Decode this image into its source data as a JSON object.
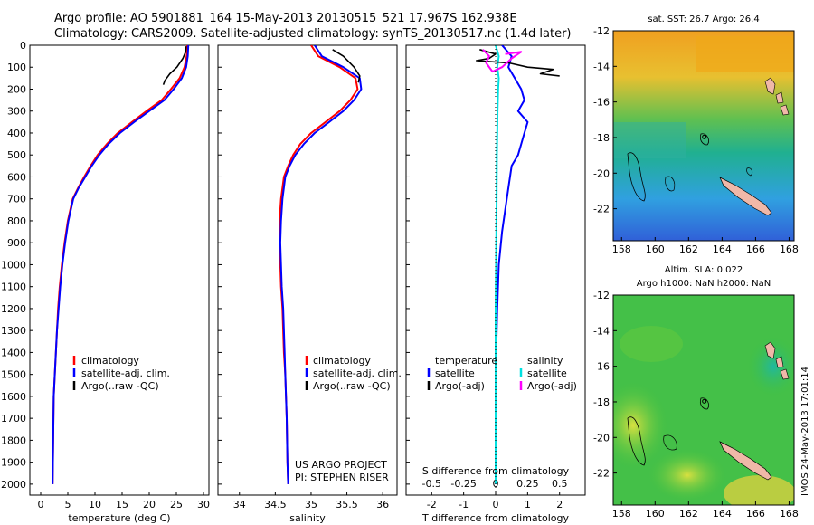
{
  "figure": {
    "title_line1": "Argo profile: AO 5901881_164 15-May-2013 20130515_521 17.967S 162.938E",
    "title_line2": "Climatology: CARS2009. Satellite-adjusted climatology: synTS_20130517.nc (1.4d later)",
    "credit_line1": "US ARGO PROJECT",
    "credit_line2": "PI: STEPHEN RISER",
    "imos_stamp": "IMOS 24-May-2013 17:01:14"
  },
  "colors": {
    "climatology": "#ff0000",
    "satellite": "#0000ff",
    "argo": "#000000",
    "satellite_salinity": "#00e0e0",
    "argo_salinity": "#ff00ff",
    "land": "#f0b8a8"
  },
  "chart_data": [
    {
      "type": "line",
      "panel": "temperature",
      "xlabel": "temperature (deg C)",
      "ylabel": "",
      "xlim": [
        -2,
        31
      ],
      "ylim": [
        2050,
        0
      ],
      "xticks": [
        "0",
        "5",
        "10",
        "15",
        "20",
        "25",
        "30"
      ],
      "yticks": [
        "0",
        "100",
        "200",
        "300",
        "400",
        "500",
        "600",
        "700",
        "800",
        "900",
        "1000",
        "1100",
        "1200",
        "1300",
        "1400",
        "1500",
        "1600",
        "1700",
        "1800",
        "1900",
        "2000"
      ],
      "legend": [
        "climatology",
        "satellite-adj. clim.",
        "Argo(..raw -QC)"
      ],
      "series": [
        {
          "name": "climatology",
          "color_key": "climatology",
          "x": [
            27.0,
            26.9,
            26.5,
            25.6,
            24.0,
            22.3,
            19.5,
            16.8,
            14.2,
            12.2,
            10.5,
            9.2,
            8.0,
            6.9,
            5.9,
            5.0,
            4.4,
            3.9,
            3.5,
            3.2,
            3.0,
            2.8,
            2.6,
            2.4,
            2.3,
            2.2
          ],
          "y": [
            0,
            50,
            100,
            150,
            200,
            250,
            300,
            350,
            400,
            450,
            500,
            550,
            600,
            650,
            700,
            800,
            900,
            1000,
            1100,
            1200,
            1300,
            1400,
            1500,
            1600,
            1800,
            2000
          ]
        },
        {
          "name": "satellite-adj. clim.",
          "color_key": "satellite",
          "x": [
            27.2,
            27.1,
            26.8,
            26.0,
            24.5,
            22.8,
            20.0,
            17.2,
            14.6,
            12.5,
            10.8,
            9.4,
            8.2,
            7.0,
            6.0,
            5.1,
            4.5,
            4.0,
            3.6,
            3.3,
            3.0,
            2.8,
            2.6,
            2.4,
            2.3,
            2.2
          ],
          "y": [
            0,
            50,
            100,
            150,
            200,
            250,
            300,
            350,
            400,
            450,
            500,
            550,
            600,
            650,
            700,
            800,
            900,
            1000,
            1100,
            1200,
            1300,
            1400,
            1500,
            1600,
            1800,
            2000
          ]
        },
        {
          "name": "Argo(..raw -QC)",
          "color_key": "argo",
          "x": [
            26.8,
            26.7,
            26.2,
            25.1,
            23.8,
            22.9,
            22.6
          ],
          "y": [
            5,
            30,
            60,
            100,
            130,
            160,
            180
          ]
        }
      ]
    },
    {
      "type": "line",
      "panel": "salinity",
      "xlabel": "salinity",
      "ylabel": "",
      "xlim": [
        33.7,
        36.2
      ],
      "ylim": [
        2050,
        0
      ],
      "xticks": [
        "34",
        "34.5",
        "35",
        "35.5",
        "36"
      ],
      "legend": [
        "climatology",
        "satellite-adj. clim.",
        "Argo(..raw -QC)"
      ],
      "series": [
        {
          "name": "climatology",
          "color_key": "climatology",
          "x": [
            35.0,
            35.1,
            35.4,
            35.62,
            35.65,
            35.55,
            35.4,
            35.2,
            35.0,
            34.85,
            34.75,
            34.68,
            34.62,
            34.58,
            34.56,
            34.56,
            34.57,
            34.58,
            34.6,
            34.62,
            34.64,
            34.65,
            34.66,
            34.67,
            34.68
          ],
          "y": [
            0,
            50,
            100,
            150,
            200,
            250,
            300,
            350,
            400,
            450,
            500,
            550,
            600,
            700,
            800,
            900,
            1000,
            1100,
            1200,
            1400,
            1500,
            1600,
            1700,
            1900,
            2000
          ]
        },
        {
          "name": "satellite-adj. clim.",
          "color_key": "satellite",
          "x": [
            35.05,
            35.15,
            35.45,
            35.68,
            35.7,
            35.6,
            35.45,
            35.25,
            35.05,
            34.9,
            34.78,
            34.7,
            34.64,
            34.6,
            34.58,
            34.57,
            34.58,
            34.59,
            34.61,
            34.63,
            34.64,
            34.65,
            34.66,
            34.67,
            34.68
          ],
          "y": [
            0,
            50,
            100,
            150,
            200,
            250,
            300,
            350,
            400,
            450,
            500,
            550,
            600,
            700,
            800,
            900,
            1000,
            1100,
            1200,
            1400,
            1500,
            1600,
            1700,
            1900,
            2000
          ]
        },
        {
          "name": "Argo(..raw -QC)",
          "color_key": "argo",
          "x": [
            35.3,
            35.45,
            35.6,
            35.68,
            35.66
          ],
          "y": [
            20,
            50,
            100,
            140,
            170
          ]
        }
      ]
    },
    {
      "type": "line",
      "panel": "difference",
      "xlabel": "T difference from climatology",
      "xlabel_top": "S difference from climatology",
      "xlim": [
        -2.8,
        2.8
      ],
      "ylim": [
        2050,
        0
      ],
      "xticks": [
        "-2",
        "-1",
        "0",
        "1",
        "2"
      ],
      "sticks": [
        "-0.5",
        "-0.25",
        "0",
        "0.25",
        "0.5"
      ],
      "legend_titles": [
        "temperature",
        "salinity"
      ],
      "legend": [
        "satellite",
        "Argo(-adj)",
        "satellite",
        "Argo(-adj)"
      ],
      "series": [
        {
          "name": "satellite",
          "group": "temperature",
          "color_key": "satellite",
          "x": [
            0.2,
            0.5,
            0.4,
            0.6,
            0.8,
            0.9,
            0.7,
            1.0,
            0.9,
            0.8,
            0.7,
            0.5,
            0.4,
            0.3,
            0.2,
            0.1,
            0.05,
            0.0,
            0.0,
            0.0
          ],
          "y": [
            0,
            50,
            100,
            150,
            200,
            250,
            300,
            350,
            400,
            450,
            500,
            550,
            650,
            750,
            850,
            1000,
            1200,
            1500,
            1800,
            2000
          ]
        },
        {
          "name": "satellite",
          "group": "salinity",
          "color_key": "satellite_salinity",
          "x": [
            0.0,
            0.1,
            0.05,
            0.1,
            0.08,
            0.06,
            0.05,
            0.04,
            0.03,
            0.02,
            0.0,
            0.0,
            0.0
          ],
          "y": [
            0,
            50,
            100,
            150,
            200,
            300,
            400,
            500,
            700,
            900,
            1200,
            1600,
            2000
          ]
        },
        {
          "name": "Argo(-adj)",
          "group": "temperature",
          "color_key": "argo",
          "x": [
            -0.5,
            0.0,
            -0.2,
            -0.6,
            0.4,
            1.0,
            1.8,
            1.4,
            2.0
          ],
          "y": [
            20,
            40,
            60,
            70,
            80,
            100,
            110,
            130,
            140
          ]
        },
        {
          "name": "Argo(-adj)",
          "group": "salinity",
          "color_key": "argo_salinity",
          "x": [
            -0.4,
            -0.2,
            -0.3,
            -0.1,
            0.2,
            0.5,
            0.8,
            0.3
          ],
          "y": [
            20,
            50,
            80,
            120,
            100,
            60,
            30,
            40
          ]
        }
      ]
    },
    {
      "type": "heatmap",
      "panel": "sst_map",
      "title": "sat. SST: 26.7 Argo: 26.4",
      "xlim": [
        157.5,
        168.3
      ],
      "ylim": [
        -23.8,
        -12
      ],
      "xticks": [
        "158",
        "160",
        "162",
        "164",
        "166",
        "168"
      ],
      "yticks": [
        "-12",
        "-14",
        "-16",
        "-18",
        "-20",
        "-22"
      ],
      "argo_position": {
        "lon": 162.938,
        "lat": -17.967
      }
    },
    {
      "type": "heatmap",
      "panel": "sla_map",
      "title": "Altim. SLA: 0.022",
      "subtitle": "Argo h1000: NaN h2000: NaN",
      "xlim": [
        157.5,
        168.3
      ],
      "ylim": [
        -23.8,
        -12
      ],
      "xticks": [
        "158",
        "160",
        "162",
        "164",
        "166",
        "168"
      ],
      "yticks": [
        "-12",
        "-14",
        "-16",
        "-18",
        "-20",
        "-22"
      ],
      "argo_position": {
        "lon": 162.938,
        "lat": -17.967
      }
    }
  ]
}
